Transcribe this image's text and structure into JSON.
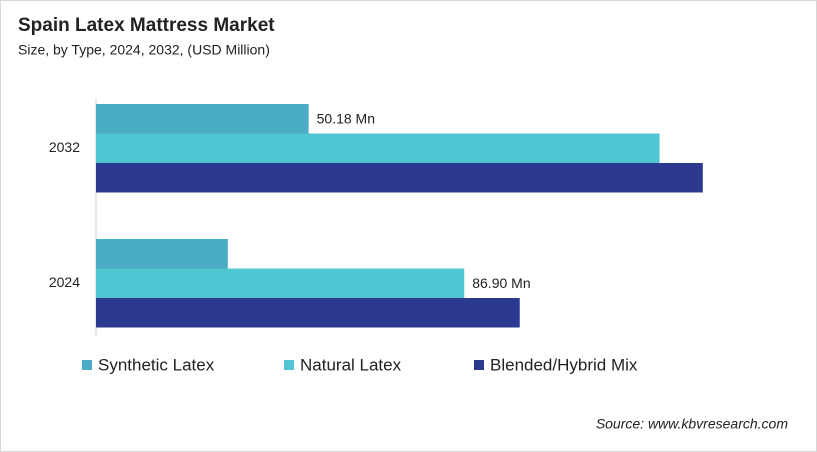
{
  "chart_data": {
    "type": "hbar",
    "title": "Spain Latex Mattress Market",
    "subtitle": "Size, by Type, 2024, 2032, (USD Million)",
    "categories": [
      "2032",
      "2024"
    ],
    "series": [
      {
        "name": "Synthetic Latex",
        "color": "#4aacc5",
        "values": [
          50.18,
          31.1
        ],
        "value_labels": [
          "50.18 Mn",
          null
        ]
      },
      {
        "name": "Natural Latex",
        "color": "#4fc6d1",
        "values": [
          133.0,
          86.9
        ],
        "value_labels": [
          null,
          "86.90 Mn"
        ]
      },
      {
        "name": "Blended/Hybrid Mix",
        "color": "#2b3990",
        "values": [
          143.2,
          100.0
        ]
      }
    ],
    "xlim": [
      0,
      160
    ],
    "legend": "bottom",
    "source": "Source: www.kbvresearch.com"
  }
}
